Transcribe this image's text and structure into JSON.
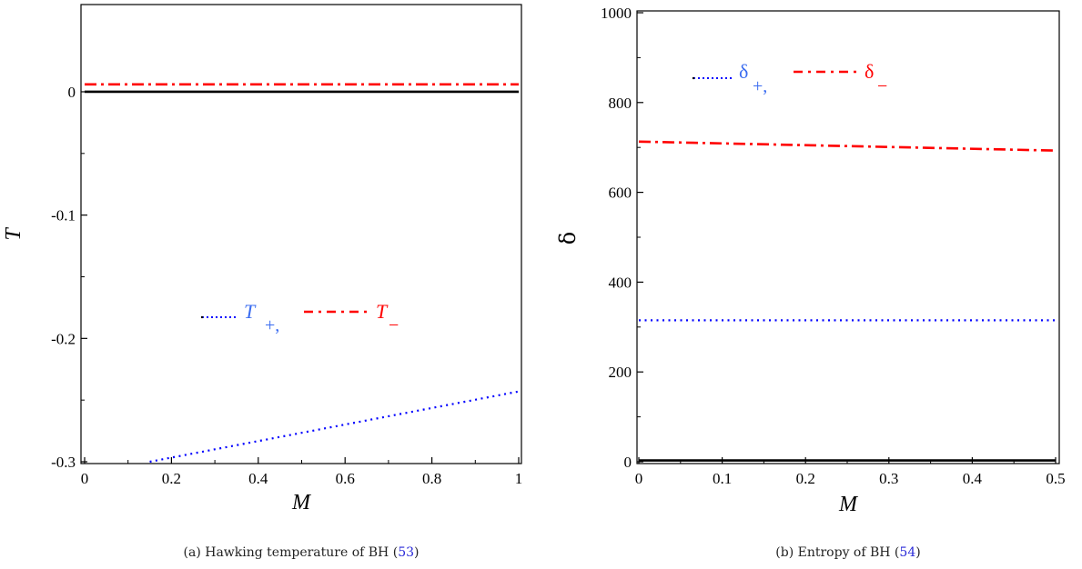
{
  "chart_data": [
    {
      "type": "line",
      "xlabel": "M",
      "ylabel": "T",
      "xlim": [
        0,
        1
      ],
      "ylim": [
        -0.3,
        0.07
      ],
      "x_ticks": [
        0,
        0.2,
        0.4,
        0.6,
        0.8,
        1
      ],
      "x_tick_labels": [
        "0",
        "0.2",
        "0.4",
        "0.6",
        "0.8",
        "1"
      ],
      "y_ticks": [
        0,
        -0.1,
        -0.2,
        -0.3
      ],
      "y_tick_labels": [
        "0",
        "-0.1",
        "-0.2",
        "-0.3"
      ],
      "grid": false,
      "legend_position": "center",
      "legend": {
        "plus_symbol": "T",
        "plus_sub": "+,",
        "minus_symbol": "T",
        "minus_sub": "−"
      },
      "series": [
        {
          "name": "T+",
          "style": "dotted",
          "color": "#0000ff",
          "x": [
            0.15,
            1.0
          ],
          "y": [
            -0.3,
            -0.243
          ]
        },
        {
          "name": "T-",
          "style": "dashdot",
          "color": "#ff0000",
          "x": [
            0,
            1.0
          ],
          "y": [
            0.006,
            0.006
          ]
        },
        {
          "style": "solid",
          "color": "#000000",
          "x": [
            0,
            1.0
          ],
          "y": [
            0,
            0
          ]
        }
      ],
      "caption": {
        "text": "(a) Hawking temperature of BH (",
        "ref": "53",
        "close": ")"
      }
    },
    {
      "type": "line",
      "xlabel": "M",
      "ylabel": "δ",
      "xlim": [
        0,
        0.5
      ],
      "ylim": [
        0,
        1000
      ],
      "x_ticks": [
        0,
        0.1,
        0.2,
        0.3,
        0.4,
        0.5
      ],
      "x_tick_labels": [
        "0",
        "0.1",
        "0.2",
        "0.3",
        "0.4",
        "0.5"
      ],
      "y_ticks": [
        0,
        200,
        400,
        600,
        800,
        1000
      ],
      "y_tick_labels": [
        "0",
        "200",
        "400",
        "600",
        "800",
        "1000"
      ],
      "grid": false,
      "legend_position": "top",
      "legend": {
        "plus_symbol": "δ",
        "plus_sub": "+,",
        "minus_symbol": "δ",
        "minus_sub": "−"
      },
      "series": [
        {
          "name": "δ+",
          "style": "dotted",
          "color": "#0000ff",
          "x": [
            0,
            0.5
          ],
          "y": [
            315,
            315
          ]
        },
        {
          "name": "δ-",
          "style": "dashdot",
          "color": "#ff0000",
          "x": [
            0,
            0.5
          ],
          "y": [
            713,
            693
          ]
        },
        {
          "style": "solid",
          "color": "#000000",
          "x": [
            0,
            0.5
          ],
          "y": [
            3,
            3
          ]
        }
      ],
      "caption": {
        "text": "(b) Entropy of BH (",
        "ref": "54",
        "close": ")"
      }
    }
  ]
}
